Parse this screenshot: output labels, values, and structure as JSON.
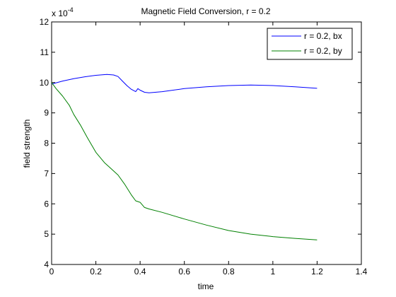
{
  "chart_data": {
    "type": "line",
    "title": "Magnetic Field Conversion, r = 0.2",
    "xlabel": "time",
    "ylabel": "field strength",
    "exponent_base": "x 10",
    "exponent_power": "-4",
    "xlim": [
      0,
      1.4
    ],
    "ylim": [
      4,
      12
    ],
    "xticks": [
      0,
      0.2,
      0.4,
      0.6,
      0.8,
      1,
      1.2,
      1.4
    ],
    "xtick_labels": [
      "0",
      "0.2",
      "0.4",
      "0.6",
      "0.8",
      "1",
      "1.2",
      "1.4"
    ],
    "yticks": [
      4,
      5,
      6,
      7,
      8,
      9,
      10,
      11,
      12
    ],
    "ytick_labels": [
      "4",
      "5",
      "6",
      "7",
      "8",
      "9",
      "10",
      "11",
      "12"
    ],
    "grid": false,
    "legend_position": "top-right",
    "series": [
      {
        "name": "r = 0.2, bx",
        "color": "#0000ff",
        "x": [
          0,
          0.05,
          0.1,
          0.15,
          0.2,
          0.25,
          0.28,
          0.3,
          0.32,
          0.34,
          0.36,
          0.38,
          0.39,
          0.4,
          0.42,
          0.44,
          0.5,
          0.6,
          0.7,
          0.8,
          0.9,
          1.0,
          1.1,
          1.2
        ],
        "y": [
          9.95,
          10.05,
          10.13,
          10.19,
          10.24,
          10.27,
          10.25,
          10.2,
          10.05,
          9.9,
          9.78,
          9.7,
          9.8,
          9.75,
          9.68,
          9.66,
          9.7,
          9.8,
          9.86,
          9.9,
          9.92,
          9.9,
          9.86,
          9.81
        ]
      },
      {
        "name": "r = 0.2, by",
        "color": "#008000",
        "x": [
          0,
          0.02,
          0.05,
          0.08,
          0.1,
          0.13,
          0.16,
          0.2,
          0.24,
          0.27,
          0.3,
          0.33,
          0.36,
          0.38,
          0.4,
          0.42,
          0.44,
          0.5,
          0.6,
          0.7,
          0.8,
          0.9,
          1.0,
          1.1,
          1.2
        ],
        "y": [
          10.0,
          9.8,
          9.55,
          9.25,
          8.95,
          8.6,
          8.2,
          7.7,
          7.35,
          7.15,
          6.95,
          6.65,
          6.3,
          6.1,
          6.05,
          5.88,
          5.83,
          5.72,
          5.5,
          5.3,
          5.12,
          5.0,
          4.92,
          4.86,
          4.81
        ]
      }
    ]
  }
}
